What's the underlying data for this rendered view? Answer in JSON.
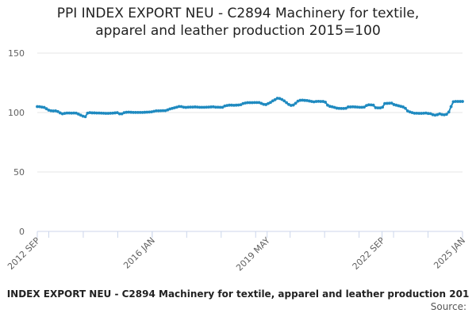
{
  "title": {
    "line1": "PPI INDEX EXPORT NEU - C2894 Machinery for textile,",
    "line2": "apparel and leather production 2015=100"
  },
  "legend": "INDEX EXPORT NEU - C2894 Machinery for textile, apparel and leather production 201",
  "source": "Source:",
  "colors": {
    "series": "#1f8ac0",
    "grid": "#e6e6e6",
    "axis": "#ccd6eb"
  },
  "chart_data": {
    "type": "line",
    "title": "PPI INDEX EXPORT NEU - C2894 Machinery for textile, apparel and leather production 2015=100",
    "xlabel": "",
    "ylabel": "",
    "ylim": [
      0,
      150
    ],
    "yticks": [
      0,
      50,
      100,
      150
    ],
    "x_tick_labels": [
      "2012 SEP",
      "2016 JAN",
      "2019 MAY",
      "2022 SEP",
      "2025 JAN"
    ],
    "x_start": "2012-09",
    "x_end": "2025-01",
    "grid": true,
    "legend_position": "bottom",
    "series": [
      {
        "name": "INDEX EXPORT NEU - C2894 Machinery for textile, apparel and leather production 201",
        "values": [
          105.0,
          104.9,
          104.6,
          104.3,
          103.2,
          102.0,
          101.5,
          101.3,
          101.4,
          100.8,
          99.7,
          98.9,
          99.3,
          99.6,
          99.6,
          99.5,
          99.6,
          99.5,
          98.7,
          97.8,
          96.9,
          96.5,
          99.5,
          99.9,
          99.7,
          99.7,
          99.6,
          99.6,
          99.5,
          99.4,
          99.3,
          99.3,
          99.4,
          99.5,
          99.7,
          99.9,
          98.9,
          98.9,
          99.9,
          100.2,
          100.3,
          100.2,
          100.1,
          100.1,
          100.1,
          100.1,
          100.1,
          100.2,
          100.3,
          100.4,
          100.6,
          101.0,
          101.4,
          101.4,
          101.5,
          101.6,
          101.6,
          102.2,
          103.0,
          103.5,
          104.0,
          104.5,
          105.1,
          105.0,
          104.5,
          104.3,
          104.5,
          104.6,
          104.6,
          104.7,
          104.6,
          104.4,
          104.4,
          104.4,
          104.5,
          104.6,
          104.7,
          104.8,
          104.5,
          104.5,
          104.4,
          104.4,
          105.5,
          105.9,
          106.2,
          106.2,
          106.1,
          106.2,
          106.3,
          106.6,
          107.6,
          108.0,
          108.3,
          108.3,
          108.3,
          108.4,
          108.4,
          108.4,
          107.7,
          106.9,
          106.7,
          107.6,
          108.5,
          109.8,
          110.8,
          112.0,
          111.8,
          111.0,
          109.8,
          108.3,
          106.8,
          106.0,
          106.3,
          107.8,
          109.6,
          110.3,
          110.4,
          110.2,
          110.1,
          109.7,
          109.3,
          109.0,
          109.3,
          109.4,
          109.3,
          109.3,
          108.7,
          106.2,
          105.2,
          104.8,
          104.3,
          103.7,
          103.5,
          103.4,
          103.4,
          103.6,
          104.7,
          104.7,
          104.8,
          104.7,
          104.6,
          104.4,
          104.4,
          104.6,
          105.9,
          106.5,
          106.4,
          106.2,
          104.1,
          103.9,
          103.9,
          104.5,
          107.6,
          107.7,
          107.8,
          107.9,
          106.7,
          106.2,
          105.7,
          105.2,
          104.7,
          103.6,
          101.3,
          100.5,
          99.9,
          99.4,
          99.4,
          99.3,
          99.3,
          99.4,
          99.6,
          99.2,
          99.1,
          98.2,
          97.8,
          98.2,
          98.9,
          98.3,
          98.1,
          98.5,
          100.4,
          105.0,
          109.1,
          109.3,
          109.3,
          109.3,
          109.3
        ]
      }
    ]
  }
}
